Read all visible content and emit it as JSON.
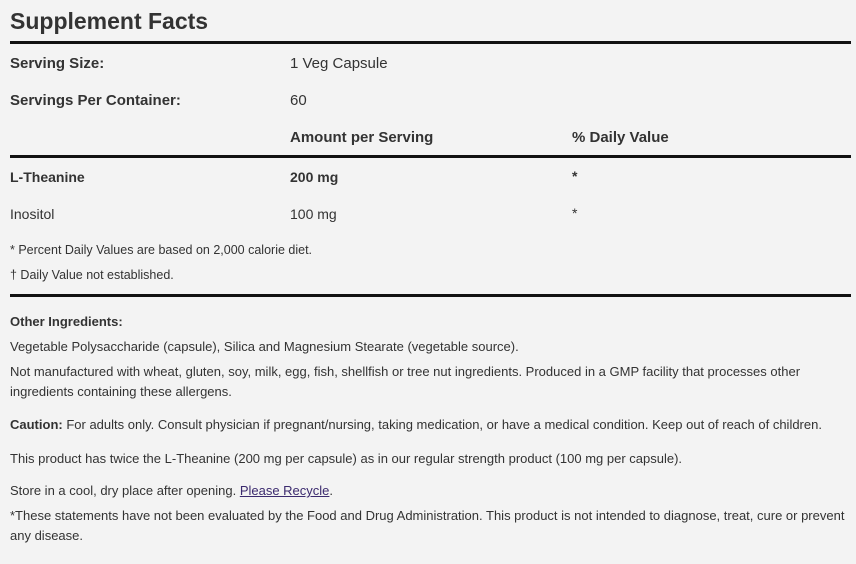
{
  "title": "Supplement Facts",
  "serving_size": {
    "label": "Serving Size:",
    "value": "1 Veg Capsule"
  },
  "servings_per_container": {
    "label": "Servings Per Container:",
    "value": "60"
  },
  "headers": {
    "amount": "Amount per Serving",
    "daily_value": "% Daily Value"
  },
  "nutrients": [
    {
      "name": "L-Theanine",
      "amount": "200 mg",
      "dv": "*"
    },
    {
      "name": "Inositol",
      "amount": "100 mg",
      "dv": "*"
    }
  ],
  "footnotes": [
    "* Percent Daily Values are based on 2,000 calorie diet.",
    "† Daily Value not established."
  ],
  "other_ingredients": {
    "label": "Other Ingredients:",
    "text": "Vegetable Polysaccharide (capsule), Silica and Magnesium Stearate (vegetable source).",
    "allergen": "Not manufactured with wheat, gluten, soy, milk, egg, fish, shellfish or tree nut ingredients. Produced in a GMP facility that processes other ingredients containing these allergens."
  },
  "caution": {
    "label": "Caution:",
    "text": " For adults only. Consult physician if pregnant/nursing, taking medication, or have a medical condition. Keep out of reach of children."
  },
  "strength_note": "This product has twice the L-Theanine (200 mg per capsule) as in our regular strength product (100 mg per capsule).",
  "storage": {
    "text": "Store in a cool, dry place after opening. ",
    "link": "Please Recycle",
    "end": "."
  },
  "disclaimer": "*These statements have not been evaluated by the Food and Drug Administration. This product is not intended to diagnose, treat, cure or prevent any disease."
}
